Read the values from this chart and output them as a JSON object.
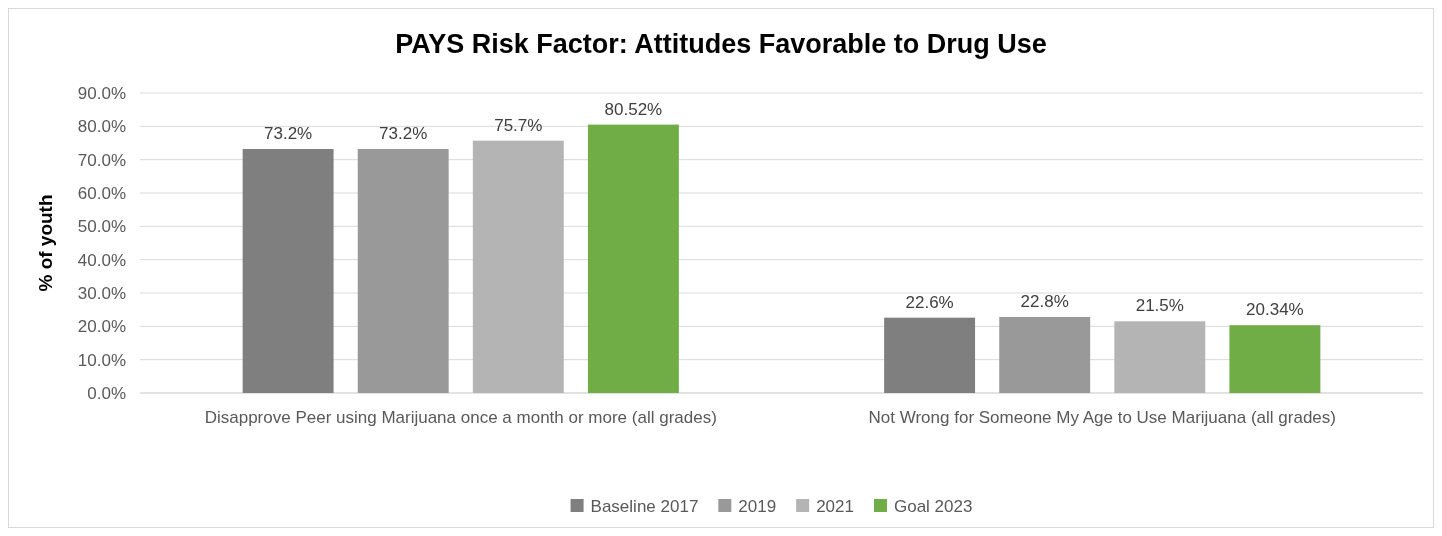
{
  "chart_data": {
    "type": "bar",
    "title": "PAYS Risk Factor: Attitudes Favorable to Drug Use",
    "ylabel": "% of youth",
    "categories": [
      "Disapprove Peer using Marijuana once a month or more (all grades)",
      "Not Wrong for Someone My Age to Use Marijuana (all grades)"
    ],
    "series": [
      {
        "name": "Baseline 2017",
        "color": "#7f7f7f",
        "values": [
          73.2,
          22.6
        ],
        "value_labels": [
          "73.2%",
          "22.6%"
        ]
      },
      {
        "name": "2019",
        "color": "#999999",
        "values": [
          73.2,
          22.8
        ],
        "value_labels": [
          "73.2%",
          "22.8%"
        ]
      },
      {
        "name": "2021",
        "color": "#b4b4b4",
        "values": [
          75.7,
          21.5
        ],
        "value_labels": [
          "75.7%",
          "21.5%"
        ]
      },
      {
        "name": "Goal 2023",
        "color": "#70ad47",
        "values": [
          80.52,
          20.34
        ],
        "value_labels": [
          "80.52%",
          "20.34%"
        ]
      }
    ],
    "ylim": [
      0,
      90
    ],
    "yticks": [
      {
        "value": 0,
        "label": "0.0%"
      },
      {
        "value": 10,
        "label": "10.0%"
      },
      {
        "value": 20,
        "label": "20.0%"
      },
      {
        "value": 30,
        "label": "30.0%"
      },
      {
        "value": 40,
        "label": "40.0%"
      },
      {
        "value": 50,
        "label": "50.0%"
      },
      {
        "value": 60,
        "label": "60.0%"
      },
      {
        "value": 70,
        "label": "70.0%"
      },
      {
        "value": 80,
        "label": "80.0%"
      },
      {
        "value": 90,
        "label": "90.0%"
      }
    ],
    "grid": "y",
    "legend": "bottom"
  }
}
